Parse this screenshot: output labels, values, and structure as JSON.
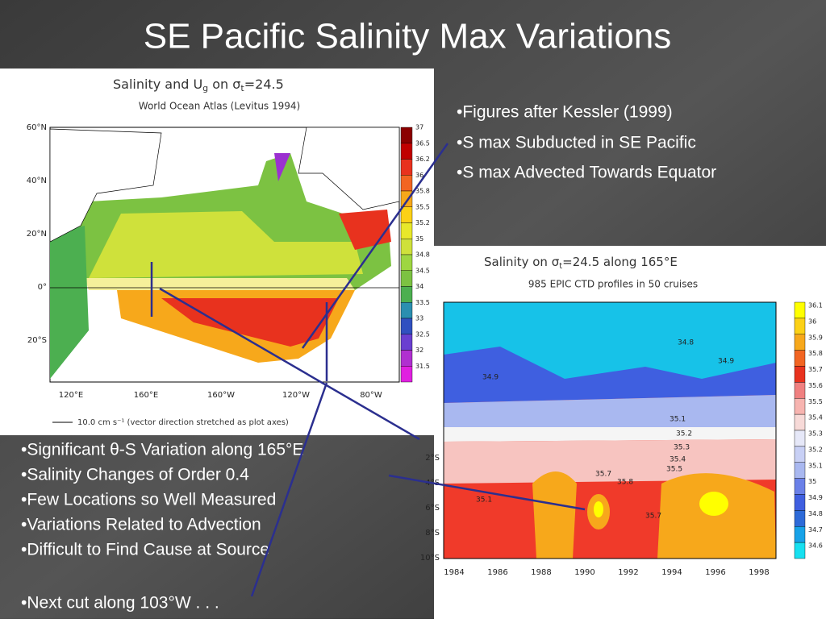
{
  "title": "SE Pacific Salinity Max Variations",
  "bullets_right": [
    "•Figures after Kessler (1999)",
    "•S max Subducted in SE Pacific",
    "•S max Advected Towards Equator"
  ],
  "bullets_left": [
    "•Significant θ-S Variation along 165°E",
    "•Salinity Changes of Order 0.4",
    "•Few Locations so Well Measured",
    "•Variations Related to Advection",
    "•Difficult to Find Cause at Source"
  ],
  "bullet_bottom": "•Next cut along 103°W . . .",
  "figure1": {
    "title_parts": [
      "Salinity and U",
      "g",
      " on σ",
      "t",
      "=24.5"
    ],
    "subtitle": "World Ocean Atlas (Levitus 1994)",
    "y_labels": [
      "60°N",
      "40°N",
      "20°N",
      "0°",
      "20°S"
    ],
    "x_labels": [
      "120°E",
      "160°E",
      "160°W",
      "120°W",
      "80°W"
    ],
    "colorbar_labels": [
      "37",
      "36.5",
      "36.2",
      "36",
      "35.8",
      "35.5",
      "35.2",
      "35",
      "34.8",
      "34.5",
      "34",
      "33.5",
      "33",
      "32.5",
      "32",
      "31.5"
    ],
    "footnote": "10.0 cm s⁻¹ (vector direction stretched as plot axes)"
  },
  "figure2": {
    "title_parts": [
      "Salinity on σ",
      "t",
      "=24.5 along 165°E"
    ],
    "subtitle": "985 EPIC CTD profiles in 50 cruises",
    "y_labels": [
      "2°S",
      "4°S",
      "6°S",
      "8°S",
      "10°S"
    ],
    "x_labels": [
      "1984",
      "1986",
      "1988",
      "1990",
      "1992",
      "1994",
      "1996",
      "1998"
    ],
    "colorbar_labels": [
      "36.1",
      "36",
      "35.9",
      "35.8",
      "35.7",
      "35.6",
      "35.5",
      "35.4",
      "35.3",
      "35.2",
      "35.1",
      "35",
      "34.9",
      "34.8",
      "34.7",
      "34.6"
    ],
    "contour_labels": [
      "34.9",
      "34.8",
      "34.9",
      "35.1",
      "35.2",
      "35.3",
      "35.4",
      "35.5",
      "35.7",
      "35.8",
      "35.7",
      "35.1"
    ]
  }
}
